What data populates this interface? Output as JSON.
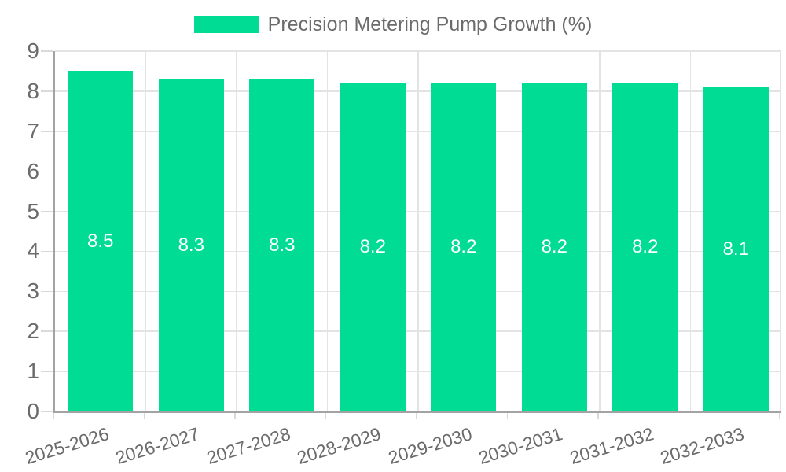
{
  "chart_data": {
    "type": "bar",
    "legend": "Precision Metering Pump Growth (%)",
    "categories": [
      "2025-2026",
      "2026-2027",
      "2027-2028",
      "2028-2029",
      "2029-2030",
      "2030-2031",
      "2031-2032",
      "2032-2033"
    ],
    "values": [
      8.5,
      8.3,
      8.3,
      8.2,
      8.2,
      8.2,
      8.2,
      8.1
    ],
    "bar_labels": [
      "8.5",
      "8.3",
      "8.3",
      "8.2",
      "8.2",
      "8.2",
      "8.2",
      "8.1"
    ],
    "ylim": [
      0,
      9
    ],
    "yticks": [
      0,
      1,
      2,
      3,
      4,
      5,
      6,
      7,
      8,
      9
    ],
    "grid": true,
    "legend_position": "top-center",
    "colors": {
      "bar": "#00DC94",
      "bar_label_text": "#ffffff",
      "axis_text": "#6b6b6b",
      "grid_line": "#e3e3e3",
      "axis_line": "#a3a3a3",
      "tick_mark": "#d9d9d9",
      "background": "#ffffff"
    }
  }
}
